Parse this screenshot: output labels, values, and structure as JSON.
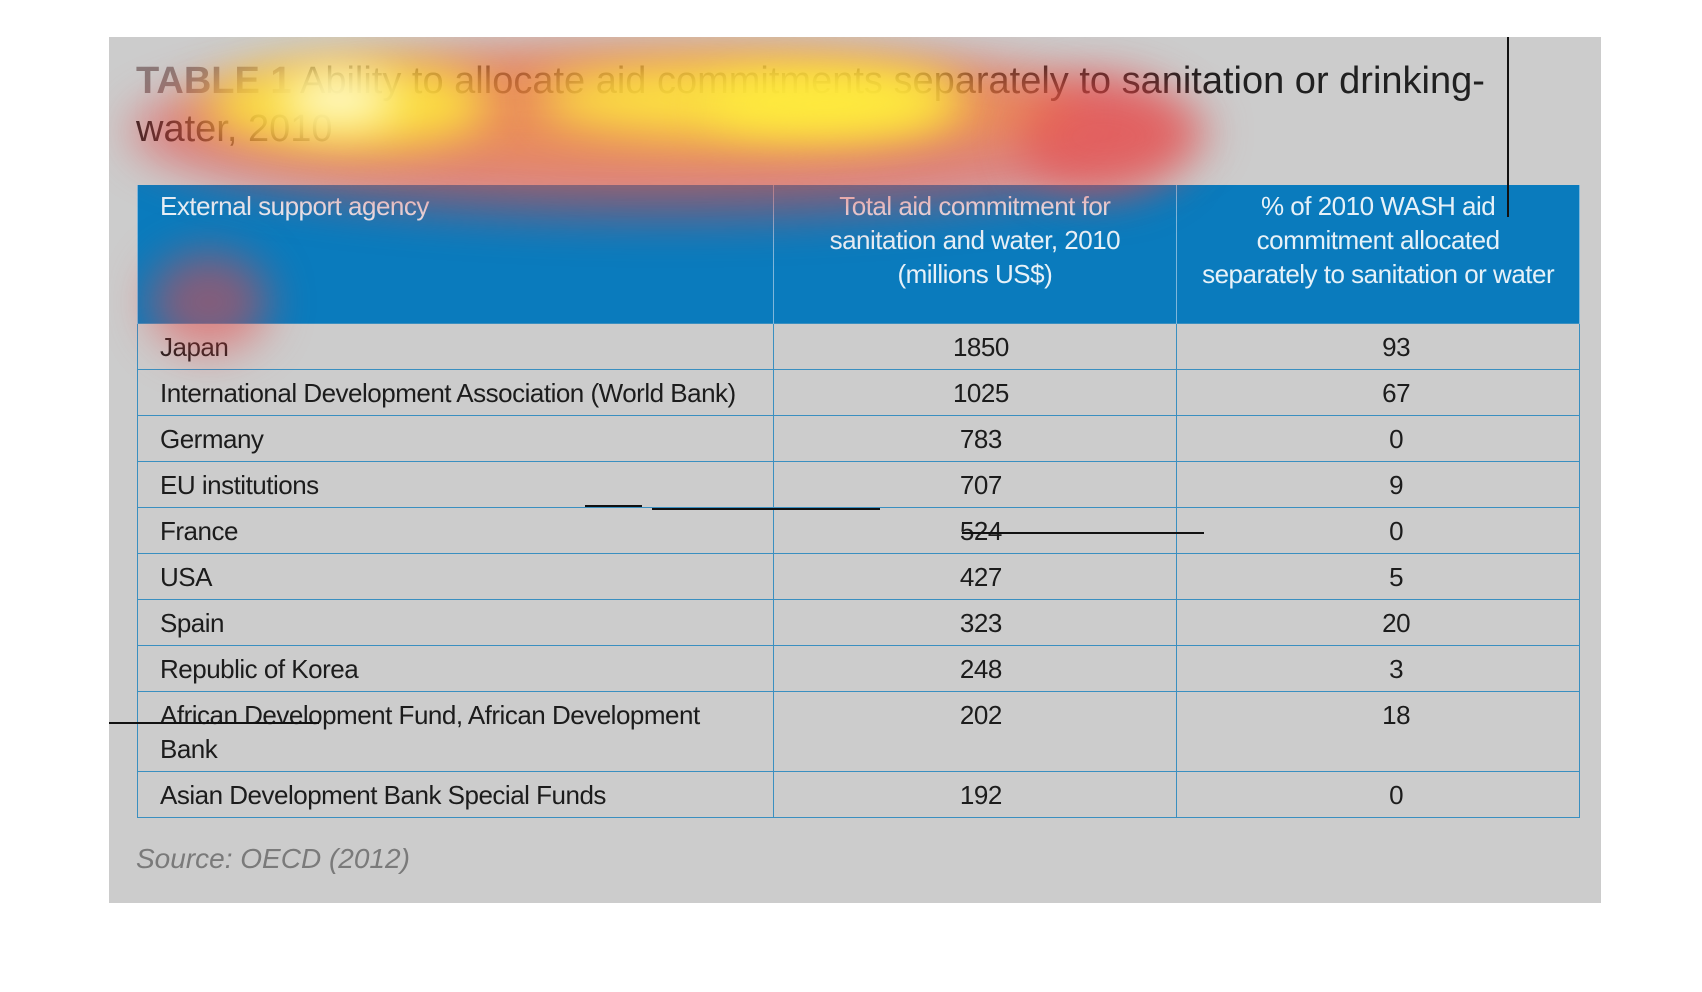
{
  "title": {
    "label": "TABLE 1",
    "text": "Ability to allocate aid commitments separately to sanitation or drinking-water, 2010"
  },
  "table": {
    "headers": [
      "External support agency",
      "Total aid commitment for sanitation and water, 2010 (millions US$)",
      "% of 2010 WASH aid commitment allocated separately to sanitation or water"
    ],
    "rows": [
      {
        "agency": "Japan",
        "total": "1850",
        "pct": "93"
      },
      {
        "agency": "International Development Association (World Bank)",
        "total": "1025",
        "pct": "67"
      },
      {
        "agency": "Germany",
        "total": "783",
        "pct": "0"
      },
      {
        "agency": "EU institutions",
        "total": "707",
        "pct": "9"
      },
      {
        "agency": "France",
        "total": "524",
        "pct": "0"
      },
      {
        "agency": "USA",
        "total": "427",
        "pct": "5"
      },
      {
        "agency": "Spain",
        "total": "323",
        "pct": "20"
      },
      {
        "agency": "Republic of Korea",
        "total": "248",
        "pct": "3"
      },
      {
        "agency": "African Development Fund, African Development Bank",
        "total": "202",
        "pct": "18"
      },
      {
        "agency": "Asian Development Bank Special Funds",
        "total": "192",
        "pct": "0"
      }
    ]
  },
  "source": "Source: OECD (2012)",
  "colors": {
    "panel_bg": "#cccccc",
    "header_bg": "#0a7bbd",
    "grid": "#3a8fc0",
    "heat_red": "#e84646",
    "heat_yellow": "#fff03c"
  }
}
